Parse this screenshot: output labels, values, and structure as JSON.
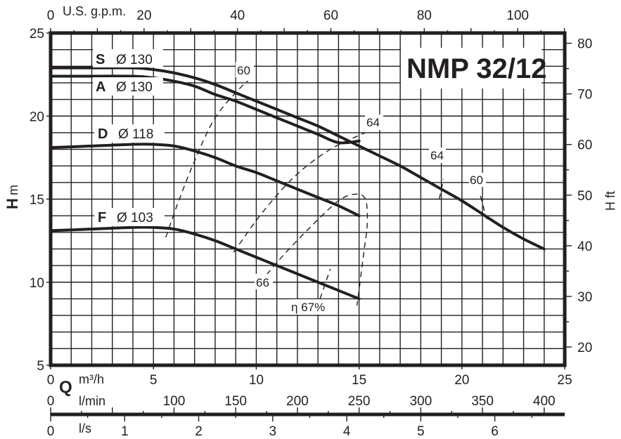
{
  "chart_data": {
    "type": "line",
    "title": "NMP 32/12",
    "xlabel": "Q m³/h",
    "ylabel": "H m",
    "ylabel_right": "H ft",
    "xlim": [
      0,
      25
    ],
    "ylim": [
      5,
      25
    ],
    "grid": true,
    "x_axes": {
      "primary": {
        "unit": "m³/h",
        "symbol": "Q",
        "ticks": [
          0,
          5,
          10,
          15,
          20,
          25
        ]
      },
      "top": {
        "unit": "U.S. g.p.m.",
        "ticks": [
          0,
          20,
          40,
          60,
          80,
          100
        ]
      },
      "lmin": {
        "unit": "l/min",
        "ticks": [
          0,
          100,
          150,
          200,
          250,
          300,
          350,
          400
        ]
      },
      "ls": {
        "unit": "l/s",
        "ticks": [
          0,
          1,
          2,
          3,
          4,
          5,
          6
        ]
      }
    },
    "y_axes": {
      "left": {
        "unit": "m",
        "symbol": "H",
        "ticks": [
          5,
          10,
          15,
          20,
          25
        ]
      },
      "right": {
        "unit": "ft",
        "symbol": "H",
        "ticks": [
          20,
          30,
          40,
          50,
          60,
          70,
          80
        ]
      }
    },
    "series": [
      {
        "name": "S Ø 130",
        "letter": "S",
        "diameter": "Ø 130",
        "x": [
          0,
          2,
          4,
          5,
          6,
          7,
          8,
          9,
          10,
          11,
          12,
          13,
          14,
          15,
          16,
          17,
          18,
          19,
          20,
          21,
          22,
          23,
          24
        ],
        "values": [
          22.9,
          22.9,
          22.9,
          22.8,
          22.6,
          22.3,
          21.9,
          21.4,
          20.9,
          20.4,
          19.9,
          19.4,
          18.8,
          18.2,
          17.6,
          17.0,
          16.3,
          15.6,
          14.9,
          14.1,
          13.3,
          12.6,
          12.0
        ]
      },
      {
        "name": "A Ø 130",
        "letter": "A",
        "diameter": "Ø 130",
        "x": [
          0,
          2,
          4,
          5,
          6,
          7,
          8,
          9,
          10,
          11,
          12,
          13,
          14,
          15
        ],
        "values": [
          22.4,
          22.4,
          22.4,
          22.3,
          22.1,
          21.8,
          21.3,
          20.9,
          20.4,
          19.9,
          19.4,
          18.9,
          18.4,
          18.5
        ]
      },
      {
        "name": "D Ø 118",
        "letter": "D",
        "diameter": "Ø 118",
        "x": [
          0,
          2,
          4,
          5,
          6,
          7,
          8,
          9,
          10,
          11,
          12,
          13,
          14,
          15
        ],
        "values": [
          18.1,
          18.2,
          18.3,
          18.3,
          18.2,
          17.9,
          17.5,
          17.0,
          16.6,
          16.1,
          15.6,
          15.1,
          14.6,
          14.0
        ]
      },
      {
        "name": "F Ø 103",
        "letter": "F",
        "diameter": "Ø 103",
        "x": [
          0,
          2,
          4,
          5,
          6,
          7,
          8,
          9,
          10,
          11,
          12,
          13,
          14,
          15
        ],
        "values": [
          13.1,
          13.2,
          13.3,
          13.3,
          13.2,
          12.9,
          12.5,
          12.0,
          11.5,
          11.0,
          10.5,
          10.0,
          9.5,
          9.0
        ]
      }
    ],
    "efficiency_curves": [
      {
        "label": "60",
        "points": [
          [
            5.6,
            12.7
          ],
          [
            6.2,
            14.8
          ],
          [
            7.0,
            17.3
          ],
          [
            8.0,
            19.9
          ],
          [
            9.3,
            21.8
          ],
          [
            9.6,
            22.1
          ]
        ]
      },
      {
        "label": "64",
        "points": [
          [
            8.9,
            11.8
          ],
          [
            10.3,
            14.2
          ],
          [
            11.9,
            16.4
          ],
          [
            13.6,
            18.0
          ],
          [
            15.3,
            19.0
          ]
        ]
      },
      {
        "label": "66",
        "points": [
          [
            10.2,
            10.0
          ],
          [
            11.3,
            11.6
          ],
          [
            12.7,
            13.4
          ],
          [
            14.0,
            14.9
          ],
          [
            14.8,
            15.3
          ],
          [
            15.3,
            15.0
          ],
          [
            15.4,
            13.6
          ],
          [
            15.2,
            11.5
          ],
          [
            14.9,
            8.6
          ]
        ]
      },
      {
        "label": "η 67%",
        "points": [
          [
            13.1,
            9.0
          ],
          [
            13.6,
            10.8
          ]
        ]
      },
      {
        "label": "64",
        "points": [
          [
            18.9,
            15.0
          ],
          [
            19.1,
            16.2
          ]
        ]
      },
      {
        "label": "60",
        "points": [
          [
            20.9,
            15.2
          ],
          [
            21.2,
            13.8
          ]
        ]
      }
    ],
    "annotations": [
      "60",
      "64",
      "66",
      "η 67%",
      "64",
      "60"
    ]
  },
  "labels": {
    "title": "NMP 32/12",
    "top_unit": "U.S. g.p.m.",
    "q_symbol": "Q",
    "q_unit": "m³/h",
    "lmin_unit": "l/min",
    "ls_unit": "l/s",
    "h_symbol": "H",
    "h_unit": "m",
    "h_right": "H ft",
    "curve_S_letter": "S",
    "curve_S_dia": "Ø 130",
    "curve_A_letter": "A",
    "curve_A_dia": "Ø 130",
    "curve_D_letter": "D",
    "curve_D_dia": "Ø 118",
    "curve_F_letter": "F",
    "curve_F_dia": "Ø 103",
    "eff_60_left": "60",
    "eff_64_mid": "64",
    "eff_66": "66",
    "eff_67": "η 67%",
    "eff_64_right": "64",
    "eff_60_right": "60"
  }
}
